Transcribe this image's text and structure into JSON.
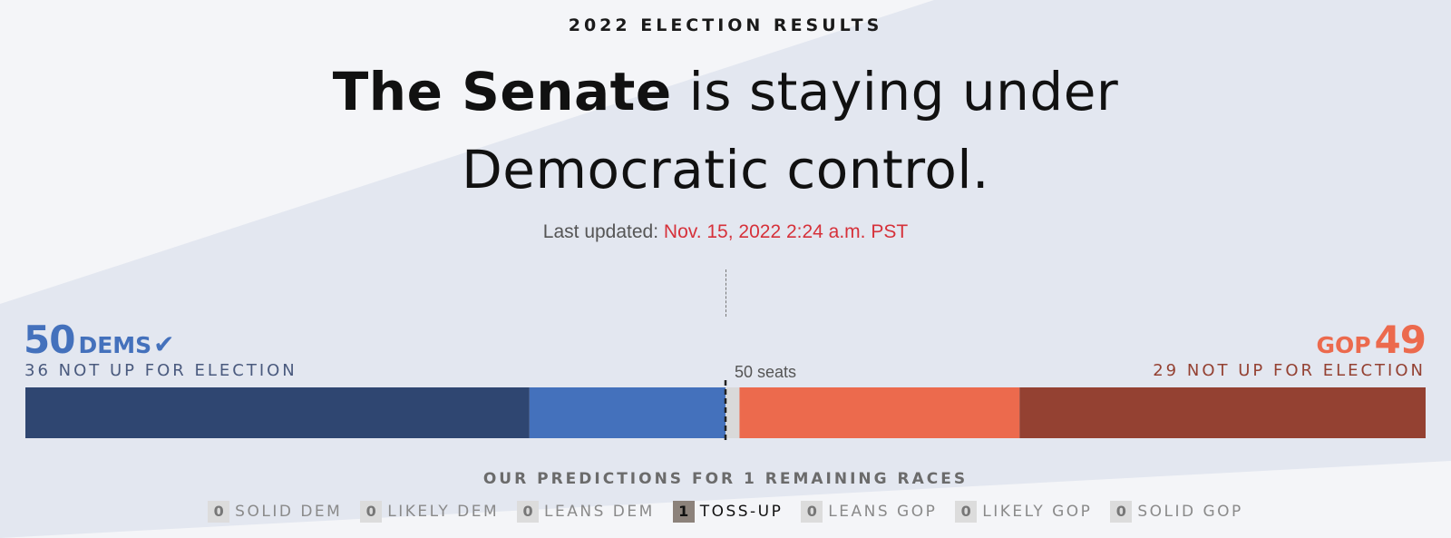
{
  "header": {
    "kicker": "2022 ELECTION RESULTS",
    "headline_bold": "The Senate",
    "headline_rest": " is staying under Democratic control.",
    "updated_label": "Last updated:",
    "updated_time": "Nov. 15, 2022 2:24 a.m. PST"
  },
  "dem": {
    "seats": "50",
    "label": "DEMS",
    "status_icon": "checkmark-icon",
    "not_up": "36 NOT UP FOR ELECTION"
  },
  "gop": {
    "seats": "49",
    "label": "GOP",
    "not_up": "29 NOT UP FOR ELECTION"
  },
  "majority_label": "50 seats",
  "predictions": {
    "title": "OUR PREDICTIONS FOR 1 REMAINING RACES",
    "items": [
      {
        "count": "0",
        "label": "SOLID DEM"
      },
      {
        "count": "0",
        "label": "LIKELY DEM"
      },
      {
        "count": "0",
        "label": "LEANS DEM"
      },
      {
        "count": "1",
        "label": "TOSS-UP"
      },
      {
        "count": "0",
        "label": "LEANS GOP"
      },
      {
        "count": "0",
        "label": "LIKELY GOP"
      },
      {
        "count": "0",
        "label": "SOLID GOP"
      }
    ]
  },
  "colors": {
    "dem_not_up": "#2f4671",
    "dem_won": "#4471bc",
    "tossup": "#d9d9d9",
    "gop_won": "#ec6a4d",
    "gop_not_up": "#944132",
    "timestamp": "#d6313a"
  },
  "chart_data": {
    "type": "bar",
    "orientation": "horizontal-stacked",
    "total_seats": 100,
    "majority_line": 50,
    "segments": [
      {
        "key": "dem_not_up",
        "value": 36
      },
      {
        "key": "dem_won",
        "value": 14
      },
      {
        "key": "tossup",
        "value": 1
      },
      {
        "key": "gop_won",
        "value": 20
      },
      {
        "key": "gop_not_up",
        "value": 29
      }
    ]
  }
}
